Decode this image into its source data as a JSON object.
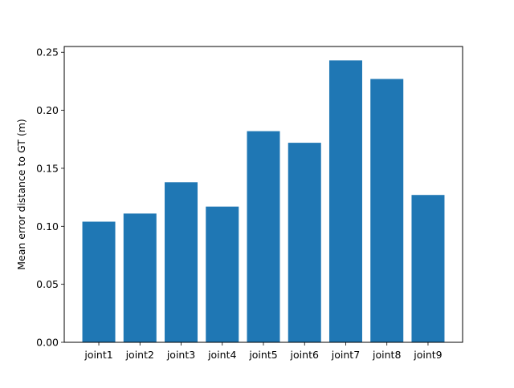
{
  "chart_data": {
    "type": "bar",
    "title": "",
    "xlabel": "",
    "ylabel": "Mean error distance to GT (m)",
    "categories": [
      "joint1",
      "joint2",
      "joint3",
      "joint4",
      "joint5",
      "joint6",
      "joint7",
      "joint8",
      "joint9"
    ],
    "values": [
      0.104,
      0.111,
      0.138,
      0.117,
      0.182,
      0.172,
      0.243,
      0.227,
      0.127
    ],
    "ylim": [
      0,
      0.255
    ],
    "yticks": [
      0.0,
      0.05,
      0.1,
      0.15,
      0.2,
      0.25
    ],
    "ytick_labels": [
      "0.00",
      "0.05",
      "0.10",
      "0.15",
      "0.20",
      "0.25"
    ],
    "grid": false,
    "legend": "none",
    "colors": {
      "bar": "#1f77b4",
      "axis": "#000000"
    }
  }
}
